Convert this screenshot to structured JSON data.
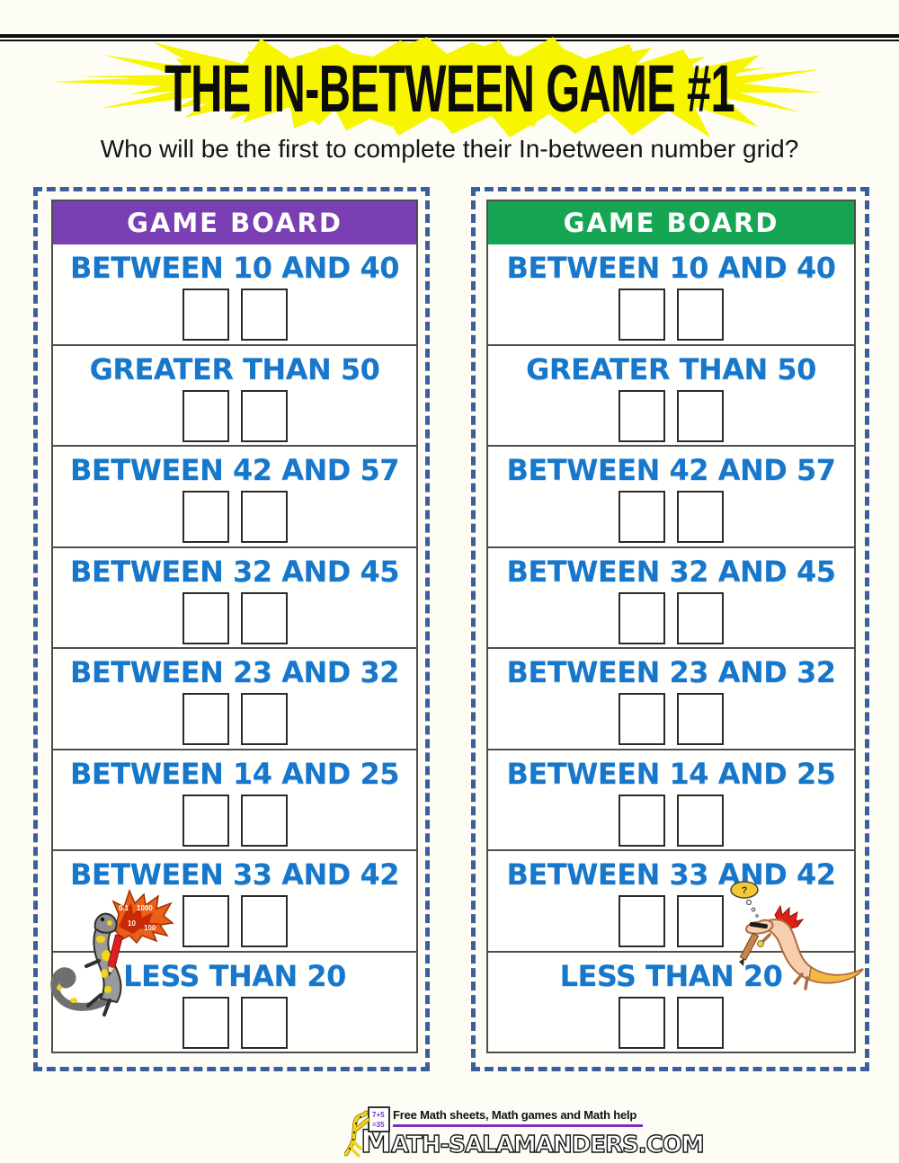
{
  "page": {
    "title": "THE IN-BETWEEN GAME #1",
    "subtitle": "Who will be the first to complete their In-between number grid?"
  },
  "colors": {
    "board_header_purple": "#7a3fb2",
    "board_header_green": "#16a653",
    "row_text_blue": "#1677cb",
    "dashed_border_blue": "#3a5f9c",
    "starburst_yellow": "#f8f500",
    "footer_rule_purple": "#7b2fbe"
  },
  "boards": [
    {
      "id": "left",
      "header": "GAME BOARD",
      "header_color": "#7a3fb2",
      "rows": [
        "BETWEEN 10 AND 40",
        "GREATER THAN 50",
        "BETWEEN 42 AND 57",
        "BETWEEN 32 AND 45",
        "BETWEEN 23 AND 32",
        "BETWEEN 14 AND 25",
        "BETWEEN 33 AND 42",
        "LESS THAN 20"
      ]
    },
    {
      "id": "right",
      "header": "GAME BOARD",
      "header_color": "#16a653",
      "rows": [
        "BETWEEN 10 AND 40",
        "GREATER THAN 50",
        "BETWEEN 42 AND 57",
        "BETWEEN 32 AND 45",
        "BETWEEN 23 AND 32",
        "BETWEEN 14 AND 25",
        "BETWEEN 33 AND 42",
        "LESS THAN 20"
      ]
    }
  ],
  "illustrations": {
    "flame_numbers": [
      "0.1",
      "1000",
      "10",
      "100"
    ],
    "thought_bubble_text": "?",
    "logo_board_lines": [
      "7+5",
      "=35"
    ]
  },
  "footer": {
    "tagline": "Free Math sheets, Math games and Math help",
    "site": "MATH-SALAMANDERS.COM"
  }
}
